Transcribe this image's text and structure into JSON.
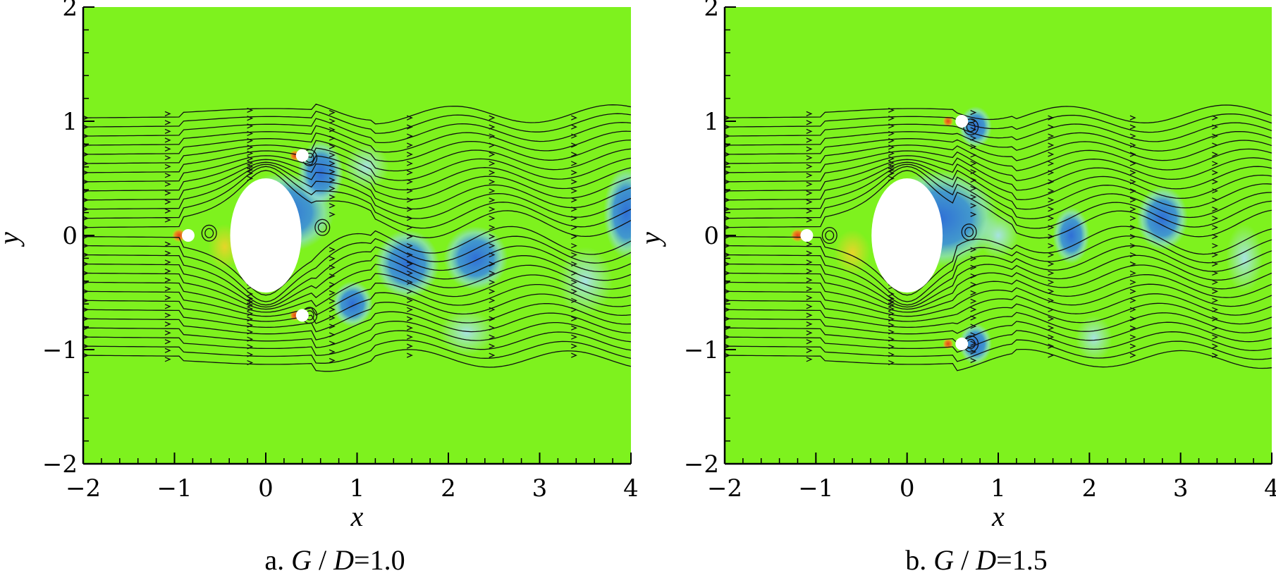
{
  "colors": {
    "background_field": "#7ef21e",
    "low_vorticity": "#2f6fd6",
    "low_vorticity_light": "#8fd8e8",
    "high_vorticity": "#e8401a",
    "high_vorticity_light": "#f2d22a",
    "streamline": "#111111",
    "cylinder": "#ffffff"
  },
  "chart_data": [
    {
      "type": "heatmap",
      "panel": "a",
      "caption_prefix": "a.",
      "caption_var": "G",
      "caption_slash": "/",
      "caption_den": "D",
      "caption_value": "=1.0",
      "xlabel": "x",
      "ylabel": "y",
      "xlim": [
        -2,
        4
      ],
      "ylim": [
        -2,
        2
      ],
      "x_ticks": [
        -2,
        -1,
        0,
        1,
        2,
        3,
        4
      ],
      "y_ticks": [
        -2,
        -1,
        0,
        1,
        2
      ],
      "x_tick_labels": [
        "−2",
        "−1",
        "0",
        "1",
        "2",
        "3",
        "4"
      ],
      "y_tick_labels": [
        "−2",
        "−1",
        "0",
        "1",
        "2"
      ],
      "main_cylinder": {
        "x": 0,
        "y": 0,
        "d": 1
      },
      "control_rods": [
        {
          "x": -0.85,
          "y": 0
        },
        {
          "x": 0.4,
          "y": 0.7
        },
        {
          "x": 0.4,
          "y": -0.7
        }
      ]
    },
    {
      "type": "heatmap",
      "panel": "b",
      "caption_prefix": "b.",
      "caption_var": "G",
      "caption_slash": "/",
      "caption_den": "D",
      "caption_value": "=1.5",
      "xlabel": "x",
      "ylabel": "y",
      "xlim": [
        -2,
        4
      ],
      "ylim": [
        -2,
        2
      ],
      "x_ticks": [
        -2,
        -1,
        0,
        1,
        2,
        3,
        4
      ],
      "y_ticks": [
        -2,
        -1,
        0,
        1,
        2
      ],
      "x_tick_labels": [
        "−2",
        "−1",
        "0",
        "1",
        "2",
        "3",
        "4"
      ],
      "y_tick_labels": [
        "−2",
        "−1",
        "0",
        "1",
        "2"
      ],
      "main_cylinder": {
        "x": 0,
        "y": 0,
        "d": 1
      },
      "control_rods": [
        {
          "x": -1.1,
          "y": 0
        },
        {
          "x": 0.6,
          "y": 1.0
        },
        {
          "x": 0.6,
          "y": -0.95
        }
      ]
    }
  ]
}
